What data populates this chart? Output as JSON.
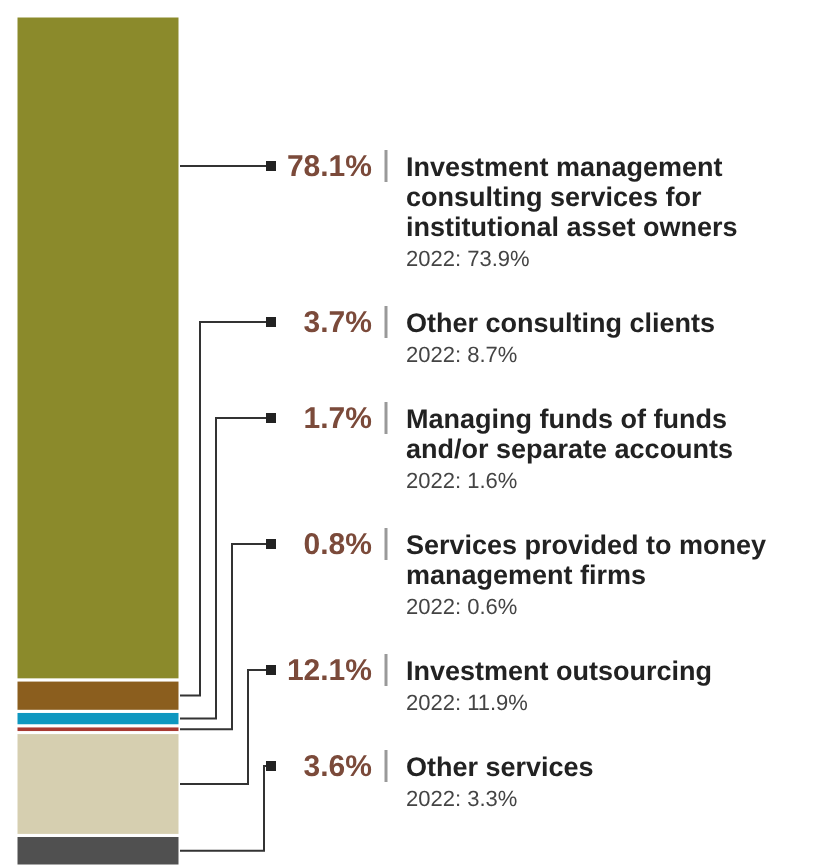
{
  "chart_data": {
    "type": "bar",
    "stacked": true,
    "categories": [
      null
    ],
    "series": [
      {
        "name": "Other services",
        "color": "#505050",
        "values": [
          3.6
        ],
        "value_labels": [
          "3.6%"
        ]
      },
      {
        "name": "Investment outsourcing",
        "color": "#d6cfb0",
        "values": [
          12.1
        ],
        "value_labels": [
          "12.1%"
        ]
      },
      {
        "name": "Services provided to money management firms",
        "color": "#a83a32",
        "values": [
          0.8
        ],
        "value_labels": [
          "0.8%"
        ]
      },
      {
        "name": "Managing funds of funds and/or separate accounts",
        "color": "#0e97c0",
        "values": [
          1.7
        ],
        "value_labels": [
          "1.7%"
        ]
      },
      {
        "name": "Other consulting clients",
        "color": "#8b5e1e",
        "values": [
          3.7
        ],
        "value_labels": [
          "3.7%"
        ]
      },
      {
        "name": "Investment management consulting services for institutional asset owners",
        "color": "#8b8a2b",
        "values": [
          78.1
        ],
        "value_labels": [
          "78.1%"
        ]
      }
    ],
    "ylim": [
      0,
      100
    ],
    "annotations": [
      "2022: 3.3%",
      "2022: 11.9%",
      "2022: 0.6%",
      "2022: 1.6%",
      "2022: 8.7%",
      "2022: 73.9%"
    ]
  }
}
